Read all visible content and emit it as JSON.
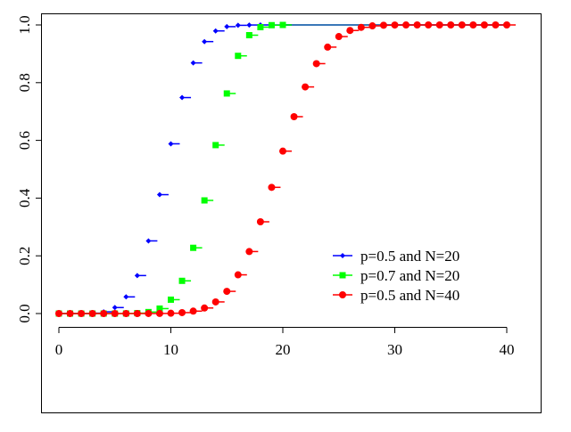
{
  "chart_data": {
    "type": "scatter",
    "title": "",
    "xlabel": "",
    "ylabel": "",
    "xlim": [
      0,
      40
    ],
    "ylim": [
      0,
      1
    ],
    "x_ticks": [
      "0",
      "10",
      "20",
      "30",
      "40"
    ],
    "y_ticks": [
      "0.0",
      "0.2",
      "0.4",
      "0.6",
      "0.8",
      "1.0"
    ],
    "grid": false,
    "legend_position": "right-middle",
    "series": [
      {
        "name": "p=0.5 and N=20",
        "color": "#0000ff",
        "marker": "diamond",
        "x": [
          0,
          1,
          2,
          3,
          4,
          5,
          6,
          7,
          8,
          9,
          10,
          11,
          12,
          13,
          14,
          15,
          16,
          17,
          18,
          19,
          20
        ],
        "y": [
          0.0,
          0.0,
          0.0002,
          0.0013,
          0.0059,
          0.0207,
          0.0577,
          0.1316,
          0.2517,
          0.4119,
          0.5881,
          0.7483,
          0.8684,
          0.9423,
          0.9793,
          0.9941,
          0.9987,
          0.9998,
          1.0,
          1.0,
          1.0
        ]
      },
      {
        "name": "p=0.7 and N=20",
        "color": "#00ff00",
        "marker": "square",
        "x": [
          0,
          1,
          2,
          3,
          4,
          5,
          6,
          7,
          8,
          9,
          10,
          11,
          12,
          13,
          14,
          15,
          16,
          17,
          18,
          19,
          20
        ],
        "y": [
          0,
          0,
          0,
          0,
          0,
          0.0,
          0.0003,
          0.0013,
          0.0051,
          0.0171,
          0.048,
          0.1133,
          0.2277,
          0.392,
          0.5836,
          0.7625,
          0.8929,
          0.9645,
          0.9924,
          0.9992,
          1.0
        ]
      },
      {
        "name": "p=0.5 and N=40",
        "color": "#ff0000",
        "marker": "circle",
        "x": [
          0,
          1,
          2,
          3,
          4,
          5,
          6,
          7,
          8,
          9,
          10,
          11,
          12,
          13,
          14,
          15,
          16,
          17,
          18,
          19,
          20,
          21,
          22,
          23,
          24,
          25,
          26,
          27,
          28,
          29,
          30,
          31,
          32,
          33,
          34,
          35,
          36,
          37,
          38,
          39,
          40
        ],
        "y": [
          0,
          0,
          0,
          0,
          0,
          0,
          0,
          0,
          0.0001,
          0.0003,
          0.0011,
          0.0032,
          0.0083,
          0.0192,
          0.0403,
          0.0769,
          0.1341,
          0.2148,
          0.3179,
          0.4373,
          0.5627,
          0.6821,
          0.7852,
          0.8659,
          0.9231,
          0.9597,
          0.9808,
          0.9917,
          0.9968,
          0.9989,
          0.9997,
          0.9999,
          1,
          1,
          1,
          1,
          1,
          1,
          1,
          1,
          1
        ]
      }
    ]
  }
}
